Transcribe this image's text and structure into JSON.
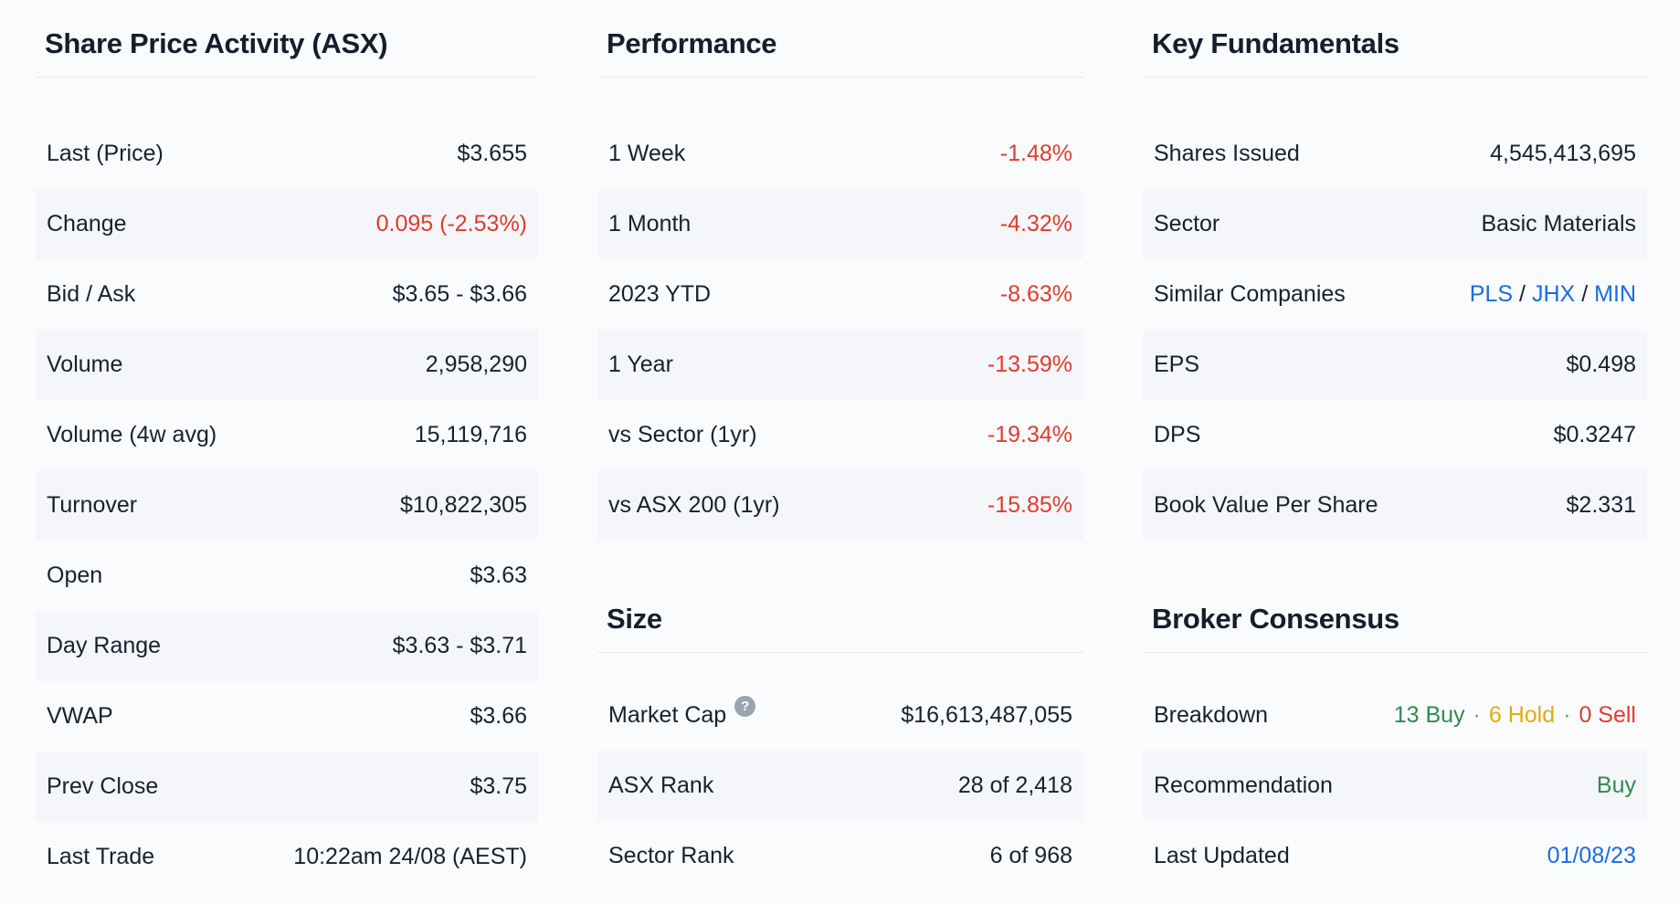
{
  "colors": {
    "negative": "#e03c2c",
    "positive": "#2f8b4f",
    "hold": "#e3aa12",
    "link": "#1a6ce3",
    "shaded_row": "#f4f6f9"
  },
  "icons": {
    "help": "?"
  },
  "share_price_activity": {
    "title": "Share Price Activity (ASX)",
    "rows": [
      {
        "label": "Last (Price)",
        "value": "$3.655"
      },
      {
        "label": "Change",
        "value": "0.095 (-2.53%)"
      },
      {
        "label": "Bid / Ask",
        "value": "$3.65 - $3.66"
      },
      {
        "label": "Volume",
        "value": "2,958,290"
      },
      {
        "label": "Volume (4w avg)",
        "value": "15,119,716"
      },
      {
        "label": "Turnover",
        "value": "$10,822,305"
      },
      {
        "label": "Open",
        "value": "$3.63"
      },
      {
        "label": "Day Range",
        "value": "$3.63 - $3.71"
      },
      {
        "label": "VWAP",
        "value": "$3.66"
      },
      {
        "label": "Prev Close",
        "value": "$3.75"
      },
      {
        "label": "Last Trade",
        "value": "10:22am 24/08 (AEST)"
      }
    ]
  },
  "performance": {
    "title": "Performance",
    "rows": [
      {
        "label": "1 Week",
        "value": "-1.48%"
      },
      {
        "label": "1 Month",
        "value": "-4.32%"
      },
      {
        "label": "2023 YTD",
        "value": "-8.63%"
      },
      {
        "label": "1 Year",
        "value": "-13.59%"
      },
      {
        "label": "vs Sector (1yr)",
        "value": "-19.34%"
      },
      {
        "label": "vs ASX 200 (1yr)",
        "value": "-15.85%"
      }
    ]
  },
  "size": {
    "title": "Size",
    "rows": [
      {
        "label": "Market Cap",
        "value": "$16,613,487,055"
      },
      {
        "label": "ASX Rank",
        "value": "28 of 2,418"
      },
      {
        "label": "Sector Rank",
        "value": "6 of 968"
      }
    ]
  },
  "key_fundamentals": {
    "title": "Key Fundamentals",
    "rows": [
      {
        "label": "Shares Issued",
        "value": "4,545,413,695"
      },
      {
        "label": "Sector",
        "value": "Basic Materials"
      },
      {
        "label": "Similar Companies",
        "links": [
          "PLS",
          "JHX",
          "MIN"
        ],
        "separator": "/"
      },
      {
        "label": "EPS",
        "value": "$0.498"
      },
      {
        "label": "DPS",
        "value": "$0.3247"
      },
      {
        "label": "Book Value Per Share",
        "value": "$2.331"
      }
    ]
  },
  "broker_consensus": {
    "title": "Broker Consensus",
    "breakdown": {
      "label": "Breakdown",
      "buy": "13 Buy",
      "hold": "6 Hold",
      "sell": "0 Sell",
      "separator": "·"
    },
    "recommendation": {
      "label": "Recommendation",
      "value": "Buy"
    },
    "last_updated": {
      "label": "Last Updated",
      "value": "01/08/23"
    }
  }
}
